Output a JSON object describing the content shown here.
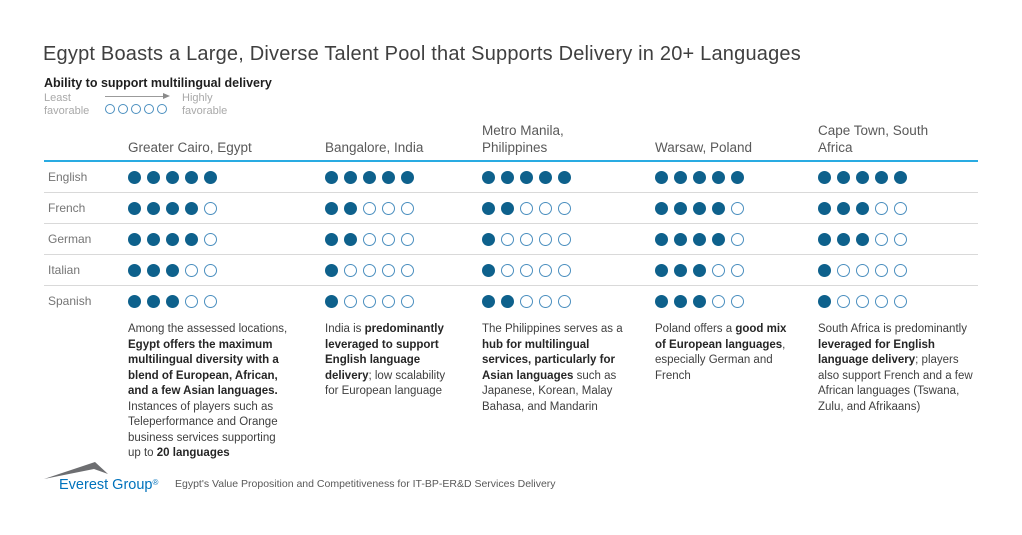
{
  "page": {
    "title": "Egypt Boasts a Large, Diverse Talent Pool that Supports Delivery in 20+ Languages",
    "subtitle": "Ability to support multilingual delivery"
  },
  "legend": {
    "least_label": "Least favorable",
    "highly_label": "Highly favorable"
  },
  "colors": {
    "dot_filled": "#0e618c",
    "dot_empty_border": "#4b8fbf",
    "header_rule": "#29abe2",
    "row_rule": "#d9d9d9",
    "brand_blue": "#0072bc"
  },
  "chart_data": {
    "type": "table",
    "title": "Ability to support multilingual delivery",
    "scale": {
      "min": 0,
      "max": 5,
      "least": "Least favorable",
      "highest": "Highly favorable"
    },
    "columns": [
      "Greater Cairo, Egypt",
      "Bangalore, India",
      "Metro Manila, Philippines",
      "Warsaw, Poland",
      "Cape Town, South Africa"
    ],
    "rows": [
      "English",
      "French",
      "German",
      "Italian",
      "Spanish"
    ],
    "values": [
      [
        5,
        5,
        5,
        5,
        5
      ],
      [
        4,
        2,
        2,
        4,
        3
      ],
      [
        4,
        2,
        1,
        4,
        3
      ],
      [
        3,
        1,
        1,
        3,
        1
      ],
      [
        3,
        1,
        2,
        3,
        1
      ]
    ],
    "legend_position": "top-left",
    "grid": "horizontal-row-separators"
  },
  "notes": [
    [
      {
        "t": "Among the assessed locations, ",
        "b": false
      },
      {
        "t": "Egypt offers the maximum multilingual diversity with a blend of European, African, and a few Asian languages.",
        "b": true
      },
      {
        "t": " Instances of players such as Teleperformance and Orange business services supporting up to ",
        "b": false
      },
      {
        "t": "20 languages",
        "b": true
      }
    ],
    [
      {
        "t": "India is ",
        "b": false
      },
      {
        "t": "predominantly leveraged to support English language delivery",
        "b": true
      },
      {
        "t": "; low scalability for European language",
        "b": false
      }
    ],
    [
      {
        "t": "The Philippines serves as a ",
        "b": false
      },
      {
        "t": "hub for multilingual services, particularly for Asian languages",
        "b": true
      },
      {
        "t": " such as Japanese, Korean, Malay Bahasa, and Mandarin",
        "b": false
      }
    ],
    [
      {
        "t": "Poland offers a ",
        "b": false
      },
      {
        "t": "good mix of European languages",
        "b": true
      },
      {
        "t": ", especially German and French",
        "b": false
      }
    ],
    [
      {
        "t": "South Africa is predominantly ",
        "b": false
      },
      {
        "t": "leveraged for English language delivery",
        "b": true
      },
      {
        "t": "; players also support French and a few African languages (Tswana, Zulu, and Afrikaans)",
        "b": false
      }
    ]
  ],
  "footer": {
    "logo_text": "Everest Group",
    "logo_reg": "®",
    "source": "Egypt's Value Proposition and Competitiveness for IT-BP-ER&D Services Delivery"
  }
}
